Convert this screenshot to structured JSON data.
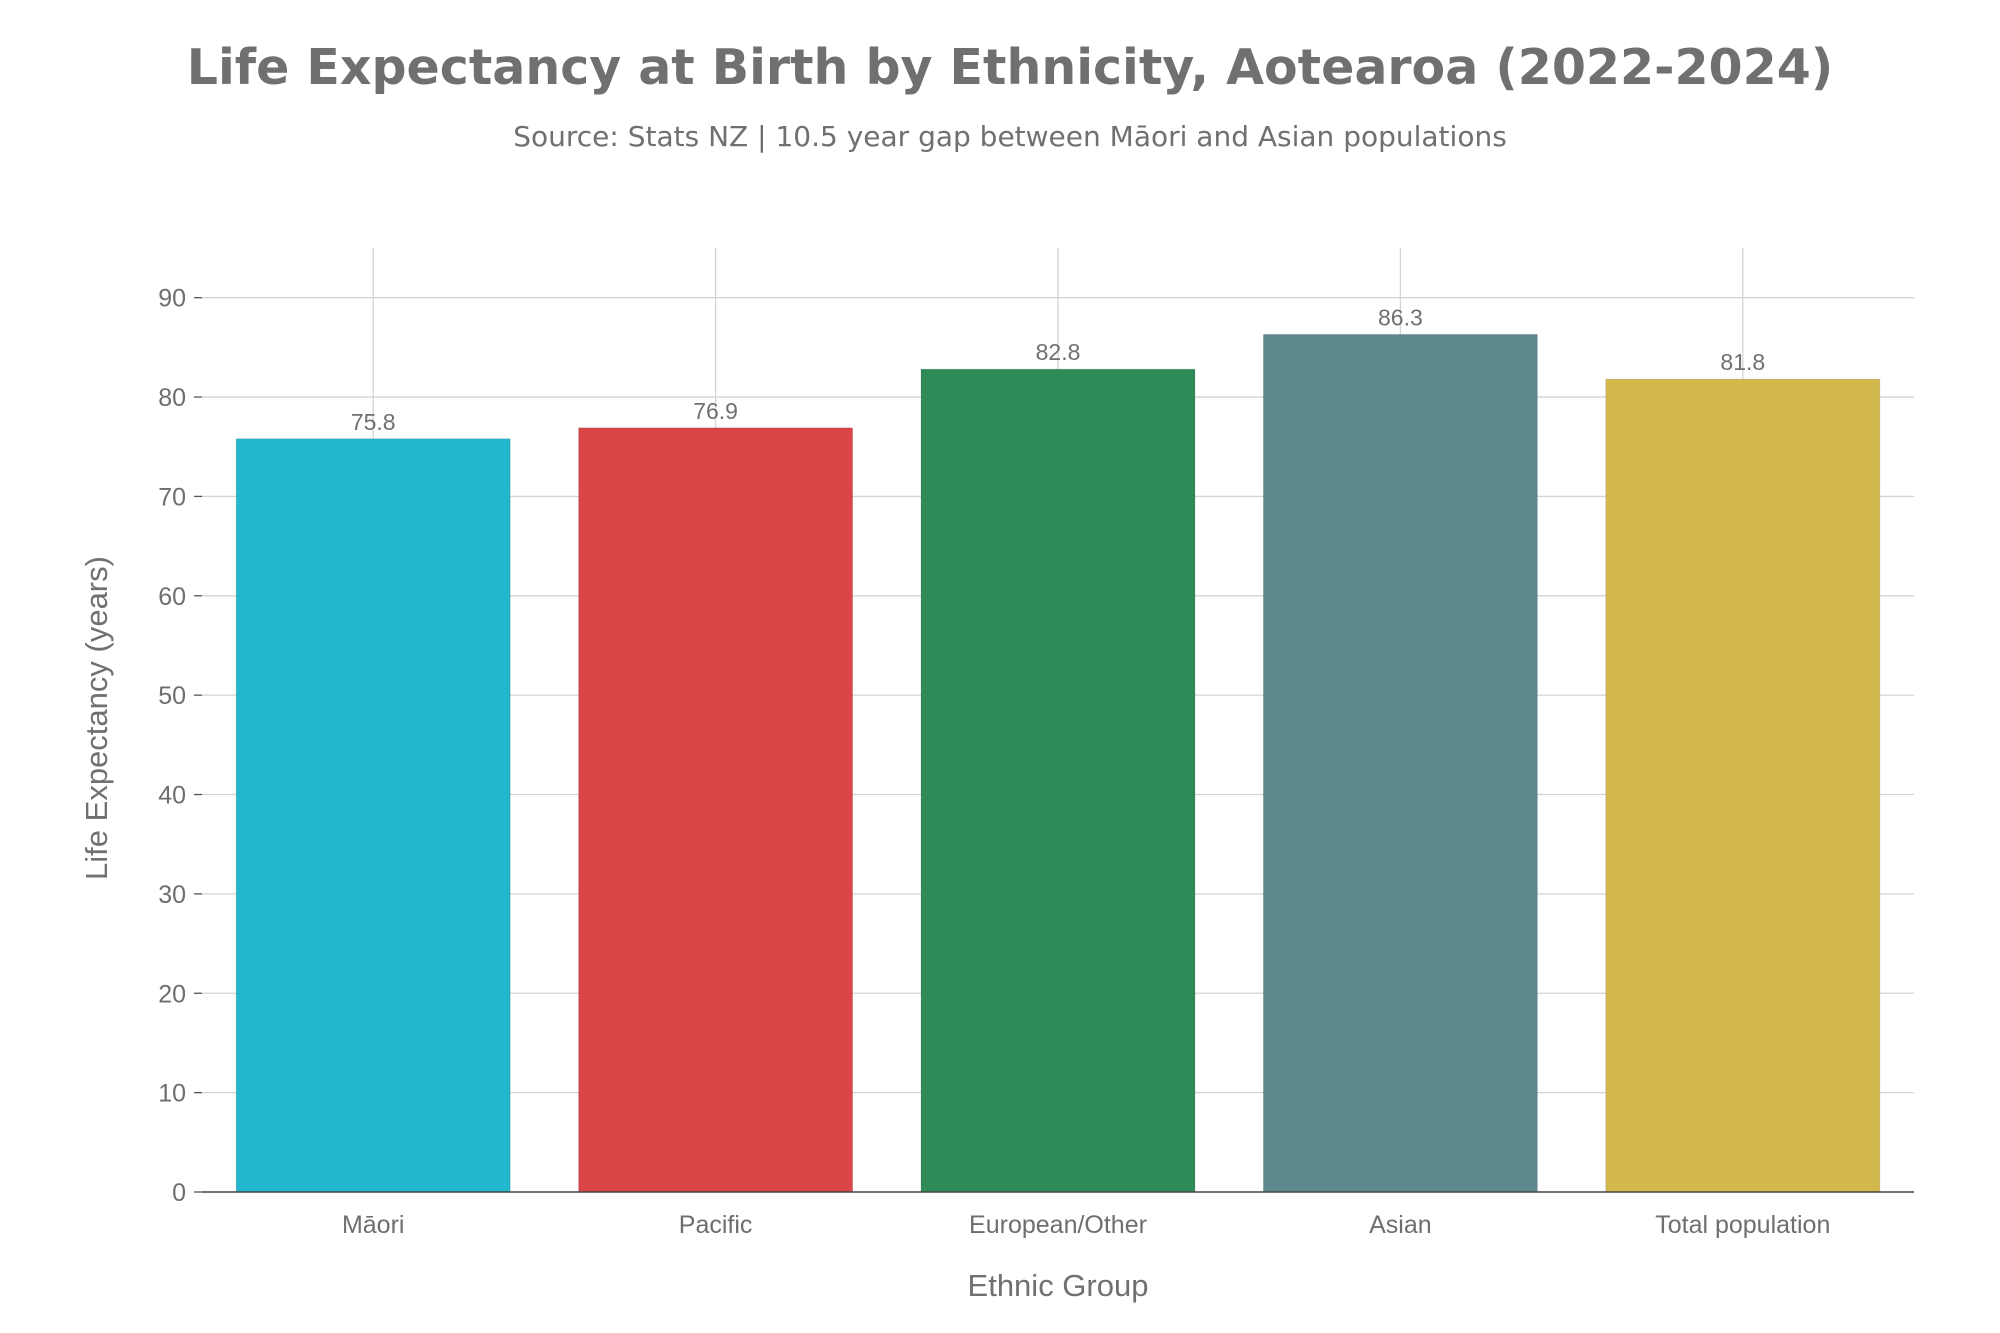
{
  "chart_data": {
    "type": "bar",
    "title": "Life Expectancy at Birth by Ethnicity, Aotearoa (2022-2024)",
    "subtitle": "Source: Stats NZ | 10.5 year gap between Māori and Asian populations",
    "xlabel": "Ethnic Group",
    "ylabel": "Life Expectancy (years)",
    "categories": [
      "Māori",
      "Pacific",
      "European/Other",
      "Asian",
      "Total population"
    ],
    "values": [
      75.8,
      76.9,
      82.8,
      86.3,
      81.8
    ],
    "data_labels": [
      "75.8",
      "76.9",
      "82.8",
      "86.3",
      "81.8"
    ],
    "colors": [
      "#21b8cd",
      "#db4547",
      "#2e8a57",
      "#5d888c",
      "#d3b94c"
    ],
    "ylim": [
      0,
      95
    ],
    "yticks": [
      0,
      10,
      20,
      30,
      40,
      50,
      60,
      70,
      80,
      90
    ],
    "ytick_labels": [
      "0",
      "10",
      "20",
      "30",
      "40",
      "50",
      "60",
      "70",
      "80",
      "90"
    ],
    "grid": true,
    "legend": "none"
  }
}
